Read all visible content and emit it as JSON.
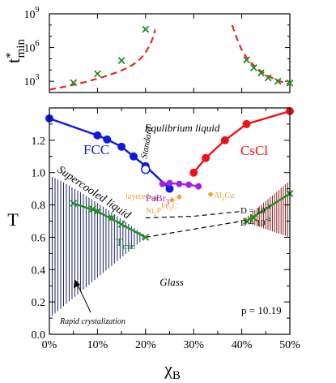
{
  "chart_data": {
    "type": "line",
    "panels": {
      "top": {
        "ylabel": "t",
        "ylabel_sup": "*",
        "ylabel_sub": "min",
        "yscale": "log",
        "ylim": [
          100,
          1000000000
        ],
        "yticks": [
          {
            "value": 1000,
            "base": "10",
            "exp": "3"
          },
          {
            "value": 1000000,
            "base": "10",
            "exp": "6"
          },
          {
            "value": 1000000000,
            "base": "10",
            "exp": "9"
          }
        ],
        "xlim": [
          0,
          50
        ],
        "dashed_curves": [
          {
            "name": "left",
            "color": "#e8262d",
            "points": [
              [
                0,
                180
              ],
              [
                2,
                260
              ],
              [
                4,
                390
              ],
              [
                6,
                610
              ],
              [
                8,
                980
              ],
              [
                10,
                1700
              ],
              [
                12,
                3100
              ],
              [
                14,
                6200
              ],
              [
                16,
                14000
              ],
              [
                17,
                24000
              ],
              [
                18,
                46000
              ],
              [
                19,
                110000
              ],
              [
                20,
                350000
              ],
              [
                21,
                2000000
              ],
              [
                21.6,
                9000000
              ],
              [
                22,
                40000000
              ]
            ]
          },
          {
            "name": "right",
            "color": "#e8262d",
            "points": [
              [
                38,
                100000000
              ],
              [
                39,
                6000000
              ],
              [
                40,
                600000
              ],
              [
                41,
                130000
              ],
              [
                42,
                42000
              ],
              [
                43,
                17000
              ],
              [
                44,
                8000
              ],
              [
                45,
                4000
              ],
              [
                46,
                2300
              ],
              [
                47,
                1450
              ],
              [
                48,
                980
              ],
              [
                49,
                720
              ],
              [
                50,
                560
              ]
            ]
          }
        ],
        "markers": [
          {
            "x": 5,
            "y": 750
          },
          {
            "x": 10,
            "y": 4600
          },
          {
            "x": 15,
            "y": 70000
          },
          {
            "x": 20,
            "y": 42000000
          },
          {
            "x": 41,
            "y": 80000
          },
          {
            "x": 42.5,
            "y": 16000
          },
          {
            "x": 44,
            "y": 5500
          },
          {
            "x": 45.5,
            "y": 2000
          },
          {
            "x": 47.5,
            "y": 1000
          },
          {
            "x": 50,
            "y": 700
          }
        ]
      },
      "bottom": {
        "xlabel": "χ",
        "xlabel_sub": "B",
        "ylabel": "T",
        "xlim": [
          0,
          50
        ],
        "ylim": [
          0,
          1.4
        ],
        "xticks": [
          0,
          10,
          20,
          30,
          40,
          50
        ],
        "xtick_labels": [
          "0%",
          "10%",
          "20%",
          "30%",
          "40%",
          "50%"
        ],
        "yticks": [
          0,
          0.2,
          0.4,
          0.6,
          0.8,
          1.0,
          1.2
        ],
        "ytick_labels": [
          "0.0",
          "0.2",
          "0.4",
          "0.6",
          "0.8",
          "1.0",
          "1.2"
        ],
        "series": [
          {
            "name": "FCC",
            "color": "#0d1ae0",
            "x": [
              0,
              10,
              12,
              15,
              17.5,
              20,
              25
            ],
            "y": [
              1.335,
              1.23,
              1.205,
              1.16,
              1.1,
              1.04,
              0.9
            ]
          },
          {
            "name": "CsCl",
            "color": "#f0101a",
            "x": [
              30,
              32.5,
              36.5,
              41,
              50
            ],
            "y": [
              1.0,
              1.09,
              1.2,
              1.3,
              1.38
            ]
          },
          {
            "name": "PuBr3",
            "color": "#a020f0",
            "x": [
              23.5,
              25,
              27,
              29,
              31
            ],
            "y": [
              0.93,
              0.935,
              0.93,
              0.925,
              0.915
            ]
          },
          {
            "name": "Tmin",
            "color": "#1f8f1f",
            "x": [
              5,
              10,
              15,
              20
            ],
            "y": [
              0.81,
              0.76,
              0.68,
              0.6
            ]
          },
          {
            "name": "Tmin-right",
            "color": "#1f8f1f",
            "x": [
              41,
              50
            ],
            "y": [
              0.7,
              0.87
            ]
          }
        ],
        "standard_point": {
          "x": 20,
          "y": 1.02
        },
        "tmin_extra_markers": [
          {
            "x": 9,
            "y": 0.775
          },
          {
            "x": 13,
            "y": 0.72
          },
          {
            "x": 42.5,
            "y": 0.72
          }
        ],
        "dashed_lines": [
          {
            "label": "D = 10^-3",
            "points": [
              [
                20,
                0.72
              ],
              [
                30,
                0.73
              ],
              [
                40,
                0.76
              ]
            ]
          },
          {
            "label": "D = 10^-4",
            "points": [
              [
                20,
                0.6
              ],
              [
                30,
                0.65
              ],
              [
                40,
                0.7
              ]
            ]
          }
        ],
        "orange_points": [
          {
            "label": "layered",
            "x": 22,
            "y": 0.84
          },
          {
            "label": "Ni2P",
            "x": 25.5,
            "y": 0.83
          },
          {
            "label": "Fe3C",
            "x": 27,
            "y": 0.85
          },
          {
            "label": "Al2Cu",
            "x": 33.5,
            "y": 0.865
          }
        ],
        "hatch_left": {
          "x_start": 0,
          "x_end": 20,
          "y_top": 0.98,
          "y_bottom": 0.1
        },
        "hatch_right": {
          "x_start": 40,
          "x_end": 50,
          "y_top_right": 0.95,
          "y_bottom_right": 0.6
        }
      }
    },
    "annotations": {
      "equilibrium": "Equlibrium liquid",
      "supercooled": "Supercooled liquid",
      "glass": "Glass",
      "rapid": "Rapid crystalization",
      "pressure": "p = 10.19",
      "fcc": "FCC",
      "cscl": "CsCl",
      "standard": "Standard",
      "pubr_base": "PuBr",
      "pubr_sub": "3",
      "layered": "layered",
      "ni_base": "Ni",
      "ni_sub": "2",
      "ni_tail": "P",
      "fe_base": "Fe",
      "fe_sub": "3",
      "fe_tail": "C",
      "al_base": "Al",
      "al_sub": "2",
      "al_tail": "Cu",
      "d3_base": "D = 10",
      "d3_sup": "-3",
      "d4_base": "D = 10",
      "d4_sup": "-4",
      "tmin_base": "T",
      "tmin_sub": "min"
    },
    "colors": {
      "fcc": "#0d1ae0",
      "cscl": "#f0101a",
      "pubr": "#a020f0",
      "tmin": "#1f8f1f",
      "orange": "#f0a030",
      "hatch_left": "#1a2070",
      "hatch_right": "#8b1a1a",
      "dashed_top": "#e8262d"
    }
  }
}
